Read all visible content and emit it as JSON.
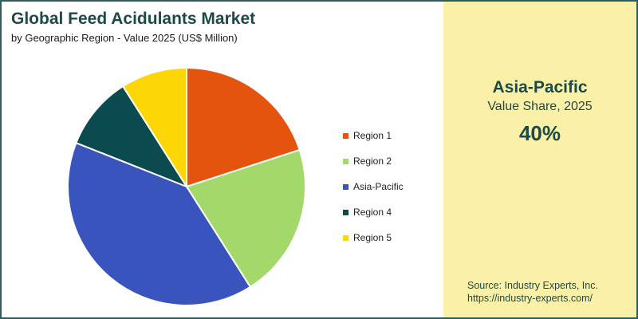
{
  "header": {
    "title": "Global Feed Acidulants Market",
    "subtitle": "by Geographic Region - Value 2025 (US$ Million)"
  },
  "highlight": {
    "region": "Asia-Pacific",
    "label": "Value Share, 2025",
    "value": "40%"
  },
  "source": {
    "line1": "Source: Industry Experts, Inc.",
    "line2": "https://industry-experts.com/"
  },
  "chart_data": {
    "type": "pie",
    "title": "Global Feed Acidulants Market",
    "subtitle": "by Geographic Region - Value 2025 (US$ Million)",
    "legend_position": "right",
    "slices": [
      {
        "label": "Region 1",
        "value": 20,
        "color": "#e5540f"
      },
      {
        "label": "Region 2",
        "value": 21,
        "color": "#a3d86b"
      },
      {
        "label": "Asia-Pacific",
        "value": 40,
        "color": "#3a54bd"
      },
      {
        "label": "Region 4",
        "value": 10,
        "color": "#0b4a4e"
      },
      {
        "label": "Region 5",
        "value": 9,
        "color": "#fdd705"
      }
    ]
  }
}
